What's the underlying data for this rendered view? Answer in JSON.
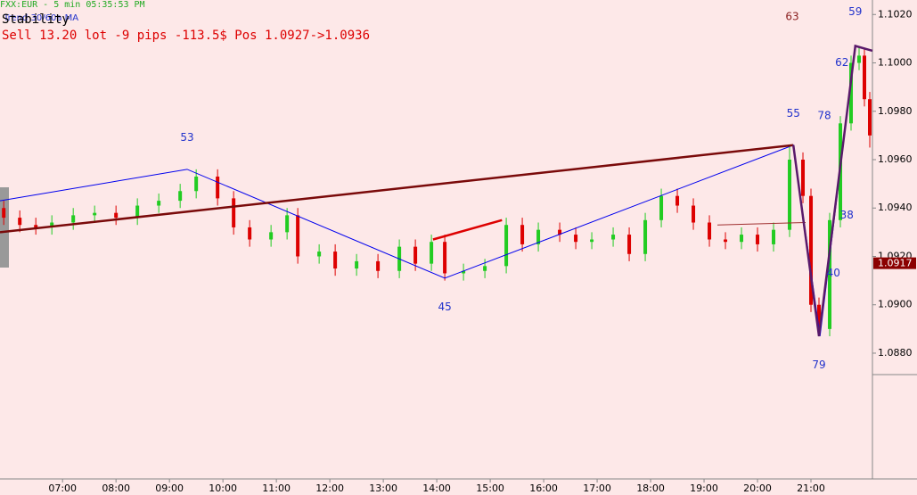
{
  "chart_data": {
    "type": "candlestick",
    "header": "FXX:EUR - 5 min 05:35:53 PM",
    "indicator": "Trend 30/60a MA",
    "label": "Stability",
    "position": "Sell 13.20 lot  -9 pips -113.5$ Pos 1.0927->1.0936",
    "xlim": [
      5.83,
      22.15
    ],
    "ylim": [
      1.0828,
      1.1026
    ],
    "xticks": [
      {
        "value": 7,
        "label": "07:00"
      },
      {
        "value": 8,
        "label": "08:00"
      },
      {
        "value": 9,
        "label": "09:00"
      },
      {
        "value": 10,
        "label": "10:00"
      },
      {
        "value": 11,
        "label": "11:00"
      },
      {
        "value": 12,
        "label": "12:00"
      },
      {
        "value": 13,
        "label": "13:00"
      },
      {
        "value": 14,
        "label": "14:00"
      },
      {
        "value": 15,
        "label": "15:00"
      },
      {
        "value": 16,
        "label": "16:00"
      },
      {
        "value": 17,
        "label": "17:00"
      },
      {
        "value": 18,
        "label": "18:00"
      },
      {
        "value": 19,
        "label": "19:00"
      },
      {
        "value": 20,
        "label": "20:00"
      },
      {
        "value": 21,
        "label": "21:00"
      }
    ],
    "yticks": [
      {
        "value": 1.088,
        "label": "1.0880"
      },
      {
        "value": 1.09,
        "label": "1.0900"
      },
      {
        "value": 1.092,
        "label": "1.0920"
      },
      {
        "value": 1.094,
        "label": "1.0940"
      },
      {
        "value": 1.096,
        "label": "1.0960"
      },
      {
        "value": 1.098,
        "label": "1.0980"
      },
      {
        "value": 1.1,
        "label": "1.1000"
      },
      {
        "value": 1.102,
        "label": "1.1020"
      }
    ],
    "last_price": 1.0917,
    "up_color": "#22cc22",
    "down_color": "#dd0000",
    "x": [
      5.9,
      6.2,
      6.5,
      6.8,
      7.2,
      7.6,
      8.0,
      8.4,
      8.8,
      9.2,
      9.5,
      9.9,
      10.2,
      10.5,
      10.9,
      11.2,
      11.4,
      11.8,
      12.1,
      12.5,
      12.9,
      13.3,
      13.6,
      13.9,
      14.15,
      14.5,
      14.9,
      15.3,
      15.6,
      15.9,
      16.3,
      16.6,
      16.9,
      17.3,
      17.6,
      17.9,
      18.2,
      18.5,
      18.8,
      19.1,
      19.4,
      19.7,
      20.0,
      20.3,
      20.6,
      20.85,
      21.0,
      21.15,
      21.35,
      21.55,
      21.75,
      21.9,
      22.0,
      22.1
    ],
    "open": [
      1.094,
      1.0936,
      1.0933,
      1.0932,
      1.0934,
      1.0937,
      1.0938,
      1.0936,
      1.0941,
      1.0943,
      1.0947,
      1.0953,
      1.0944,
      1.0932,
      1.0927,
      1.093,
      1.0937,
      1.092,
      1.0922,
      1.0915,
      1.0918,
      1.0914,
      1.0924,
      1.0917,
      1.0926,
      1.0913,
      1.0914,
      1.0916,
      1.0933,
      1.0925,
      1.0931,
      1.0929,
      1.0926,
      1.0927,
      1.0929,
      1.0921,
      1.0935,
      1.0945,
      1.0941,
      1.0934,
      1.0927,
      1.0926,
      1.0929,
      1.0925,
      1.0931,
      1.096,
      1.0945,
      1.09,
      1.089,
      1.0935,
      1.0975,
      1.1,
      1.1003,
      1.0985
    ],
    "high": [
      1.0943,
      1.0939,
      1.0936,
      1.0937,
      1.094,
      1.0941,
      1.0941,
      1.0944,
      1.0946,
      1.095,
      1.0956,
      1.0956,
      1.0947,
      1.0935,
      1.0933,
      1.094,
      1.094,
      1.0925,
      1.0925,
      1.0921,
      1.0921,
      1.0927,
      1.0927,
      1.0929,
      1.0929,
      1.0917,
      1.0919,
      1.0936,
      1.0936,
      1.0934,
      1.0934,
      1.0932,
      1.093,
      1.0932,
      1.0932,
      1.0938,
      1.0948,
      1.0948,
      1.0944,
      1.0937,
      1.093,
      1.0932,
      1.0932,
      1.0934,
      1.0966,
      1.0963,
      1.0948,
      1.0903,
      1.0938,
      1.0978,
      1.1003,
      1.1007,
      1.1006,
      1.0988
    ],
    "low": [
      1.0933,
      1.093,
      1.0929,
      1.0929,
      1.0931,
      1.0934,
      1.0933,
      1.0933,
      1.0938,
      1.094,
      1.0944,
      1.0941,
      1.0929,
      1.0924,
      1.0924,
      1.0927,
      1.0917,
      1.0917,
      1.0912,
      1.0912,
      1.0911,
      1.0911,
      1.0914,
      1.0914,
      1.091,
      1.091,
      1.0911,
      1.0913,
      1.0922,
      1.0922,
      1.0926,
      1.0923,
      1.0923,
      1.0924,
      1.0918,
      1.0918,
      1.0932,
      1.0938,
      1.0931,
      1.0924,
      1.0923,
      1.0923,
      1.0922,
      1.0922,
      1.0928,
      1.0942,
      1.0897,
      1.0887,
      1.0887,
      1.0932,
      1.0972,
      1.0997,
      1.0982,
      1.0965
    ],
    "close": [
      1.0936,
      1.0933,
      1.0932,
      1.0934,
      1.0937,
      1.0938,
      1.0936,
      1.0941,
      1.0943,
      1.0947,
      1.0953,
      1.0944,
      1.0932,
      1.0927,
      1.093,
      1.0937,
      1.092,
      1.0922,
      1.0915,
      1.0918,
      1.0914,
      1.0924,
      1.0917,
      1.0926,
      1.0913,
      1.0914,
      1.0916,
      1.0933,
      1.0925,
      1.0931,
      1.0929,
      1.0926,
      1.0927,
      1.0929,
      1.0921,
      1.0935,
      1.0945,
      1.0941,
      1.0934,
      1.0927,
      1.0926,
      1.0929,
      1.0925,
      1.0931,
      1.096,
      1.0945,
      1.09,
      1.089,
      1.0935,
      1.0975,
      1.1,
      1.1003,
      1.0985,
      1.097
    ],
    "lines": [
      {
        "color": "#0000ee",
        "width": 1,
        "x": [
          5.83,
          9.33,
          14.15,
          20.67,
          21.17,
          21.83
        ],
        "y": [
          1.0943,
          1.0956,
          1.0911,
          1.0966,
          1.0887,
          1.1007
        ]
      },
      {
        "color": "#7a0a0a",
        "width": 2.5,
        "x": [
          5.83,
          20.67
        ],
        "y": [
          1.093,
          1.0966
        ]
      },
      {
        "color": "#dd0000",
        "width": 2.5,
        "x": [
          13.93,
          15.22
        ],
        "y": [
          1.0927,
          1.0935
        ]
      },
      {
        "color": "#a03030",
        "width": 1,
        "x": [
          19.25,
          20.9
        ],
        "y": [
          1.0933,
          1.0934
        ]
      },
      {
        "color": "#5a1a6a",
        "width": 2.5,
        "x": [
          20.67,
          21.15,
          21.83,
          22.15
        ],
        "y": [
          1.0966,
          1.0887,
          1.1007,
          1.1005
        ]
      }
    ],
    "annotations": [
      {
        "text": "53",
        "x": 9.33,
        "y": 1.0969,
        "color": "#2233cc"
      },
      {
        "text": "45",
        "x": 14.15,
        "y": 1.0899,
        "color": "#2233cc"
      },
      {
        "text": "55",
        "x": 20.67,
        "y": 1.0979,
        "color": "#2233cc"
      },
      {
        "text": "78",
        "x": 21.25,
        "y": 1.0978,
        "color": "#2233cc"
      },
      {
        "text": "63",
        "x": 20.65,
        "y": 1.1019,
        "color": "#8b2020"
      },
      {
        "text": "59",
        "x": 21.83,
        "y": 1.1021,
        "color": "#2233cc"
      },
      {
        "text": "62",
        "x": 21.58,
        "y": 1.1,
        "color": "#2233cc"
      },
      {
        "text": "38",
        "x": 21.67,
        "y": 1.0937,
        "color": "#2233cc"
      },
      {
        "text": "40",
        "x": 21.42,
        "y": 1.0913,
        "color": "#2233cc"
      },
      {
        "text": "79",
        "x": 21.15,
        "y": 1.0875,
        "color": "#2233cc"
      }
    ]
  }
}
